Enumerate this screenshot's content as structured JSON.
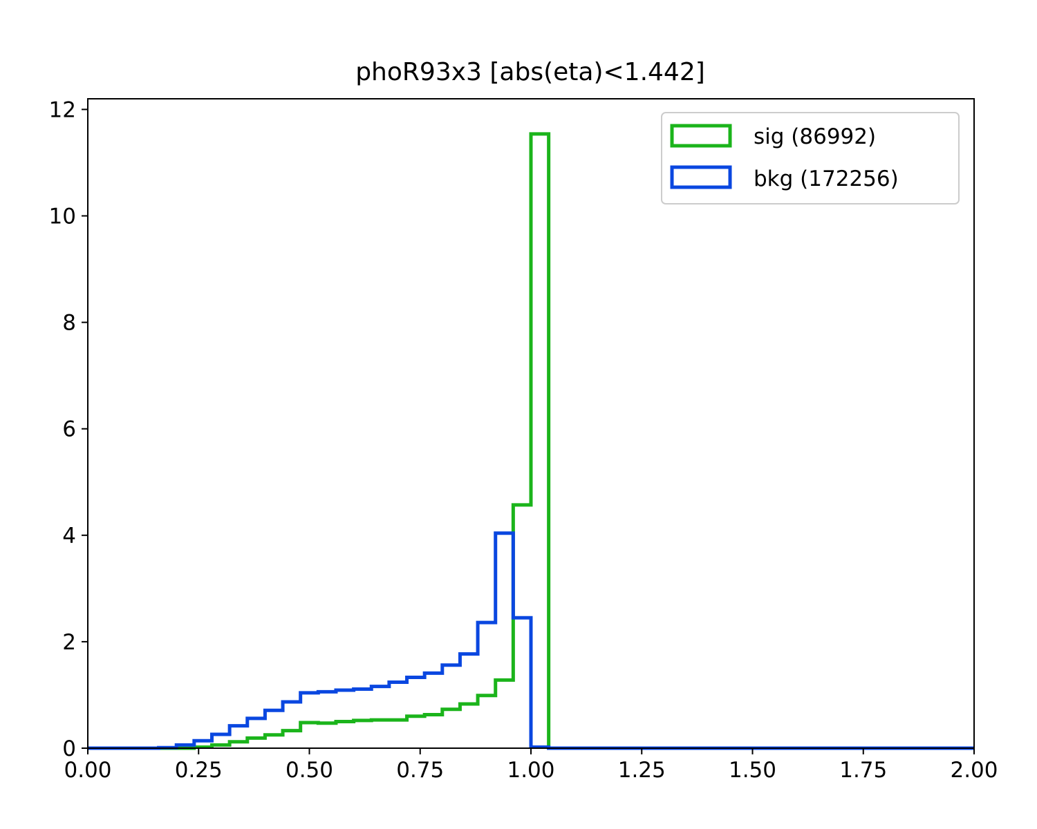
{
  "chart_data": {
    "type": "histogram",
    "title": "phoR93x3 [abs(eta)<1.442]",
    "xlim": [
      0,
      2
    ],
    "ylim": [
      0,
      12.2
    ],
    "x_ticks": [
      "0.00",
      "0.25",
      "0.50",
      "0.75",
      "1.00",
      "1.25",
      "1.50",
      "1.75",
      "2.00"
    ],
    "y_ticks": [
      "0",
      "2",
      "4",
      "6",
      "8",
      "10",
      "12"
    ],
    "grid": false,
    "legend_position": "top-right",
    "bin_edges": [
      0.0,
      0.04,
      0.08,
      0.12,
      0.16,
      0.2,
      0.24,
      0.28,
      0.32,
      0.36,
      0.4,
      0.44,
      0.48,
      0.52,
      0.56,
      0.6,
      0.64,
      0.68,
      0.72,
      0.76,
      0.8,
      0.84,
      0.88,
      0.92,
      0.96,
      1.0,
      1.04,
      1.08,
      1.12,
      1.16,
      1.2,
      1.24,
      1.28,
      1.32,
      1.36,
      1.4,
      1.44,
      1.48,
      1.52,
      1.56,
      1.6,
      1.64,
      1.68,
      1.72,
      1.76,
      1.8,
      1.84,
      1.88,
      1.92,
      1.96,
      2.0
    ],
    "series": [
      {
        "name": "sig (86992)",
        "color": "#1bb41b",
        "values": [
          0,
          0,
          0,
          0,
          0,
          0,
          0.02,
          0.06,
          0.12,
          0.19,
          0.25,
          0.33,
          0.48,
          0.47,
          0.5,
          0.52,
          0.53,
          0.53,
          0.6,
          0.63,
          0.73,
          0.83,
          0.99,
          1.28,
          4.57,
          11.54,
          0,
          0,
          0,
          0,
          0,
          0,
          0,
          0,
          0,
          0,
          0,
          0,
          0,
          0,
          0,
          0,
          0,
          0,
          0,
          0,
          0,
          0,
          0,
          0
        ]
      },
      {
        "name": "bkg (172256)",
        "color": "#0a47e0",
        "values": [
          0,
          0,
          0,
          0,
          0.01,
          0.06,
          0.14,
          0.26,
          0.42,
          0.56,
          0.71,
          0.87,
          1.04,
          1.06,
          1.09,
          1.11,
          1.16,
          1.24,
          1.33,
          1.41,
          1.56,
          1.77,
          2.36,
          4.04,
          2.45,
          0.02,
          0,
          0,
          0,
          0,
          0,
          0,
          0,
          0,
          0,
          0,
          0,
          0,
          0,
          0,
          0,
          0,
          0,
          0,
          0,
          0,
          0,
          0,
          0,
          0
        ]
      }
    ]
  }
}
